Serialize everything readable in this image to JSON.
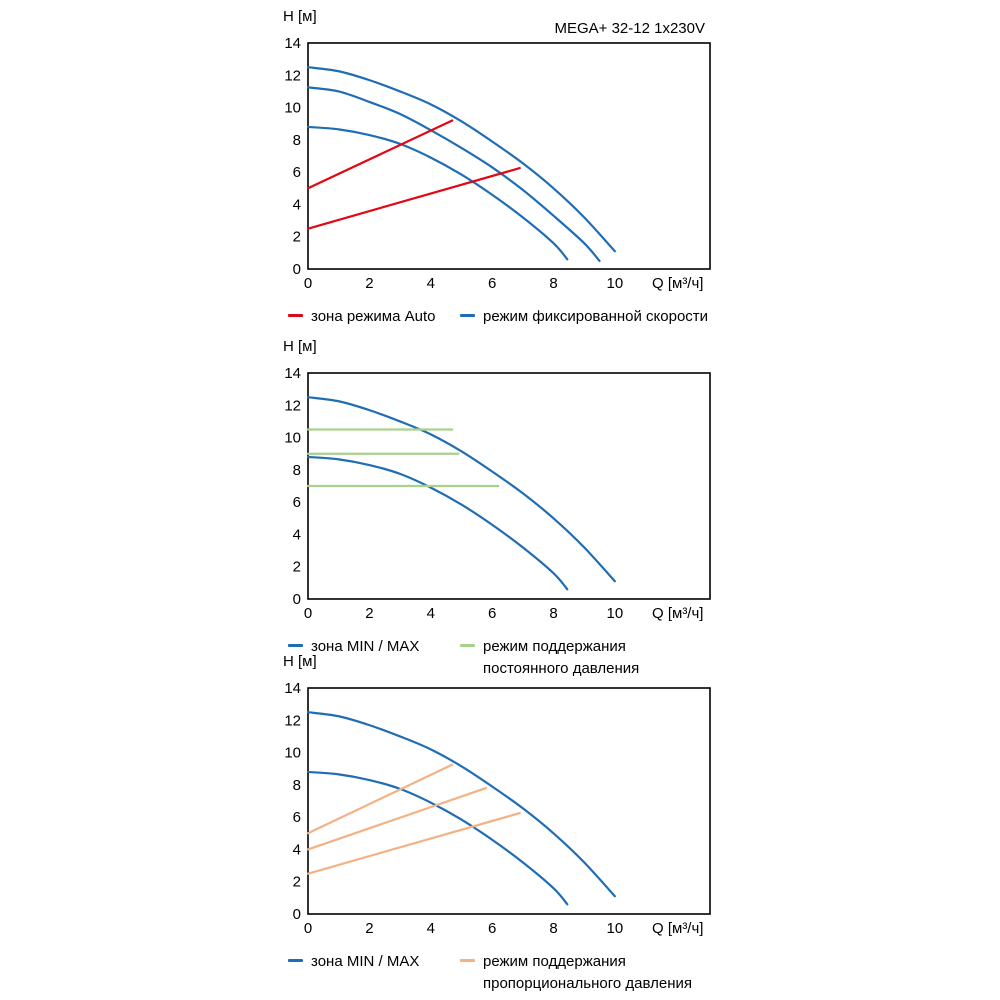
{
  "colors": {
    "blue": "#1f6db4",
    "red": "#e30613",
    "green": "#a9d18e",
    "orange": "#f4b183",
    "axis": "#000000",
    "background": "#ffffff"
  },
  "chart_data": [
    {
      "type": "line",
      "title": "MEGA+ 32-12 1x230V",
      "ylabel": "H [м]",
      "xlabel": "Q [м³/ч]",
      "xlim": [
        0,
        13.1
      ],
      "ylim": [
        0,
        14
      ],
      "xticks": [
        0,
        2,
        4,
        6,
        8,
        10
      ],
      "yticks": [
        0,
        2,
        4,
        6,
        8,
        10,
        12,
        14
      ],
      "grid": false,
      "legend_position": "bottom",
      "series": [
        {
          "name": "режим фиксированной скорости",
          "color": "blue",
          "shape": "curve",
          "points": [
            [
              0,
              12.5
            ],
            [
              1,
              12.25
            ],
            [
              2,
              11.7
            ],
            [
              3,
              11.0
            ],
            [
              4,
              10.2
            ],
            [
              5,
              9.15
            ],
            [
              6,
              7.9
            ],
            [
              7,
              6.55
            ],
            [
              8,
              5.0
            ],
            [
              9,
              3.2
            ],
            [
              10,
              1.1
            ]
          ]
        },
        {
          "name": "режим фиксированной скорости",
          "color": "blue",
          "shape": "curve",
          "points": [
            [
              0,
              11.25
            ],
            [
              1,
              11.0
            ],
            [
              2,
              10.35
            ],
            [
              3,
              9.6
            ],
            [
              4,
              8.6
            ],
            [
              5,
              7.5
            ],
            [
              6,
              6.3
            ],
            [
              7,
              4.9
            ],
            [
              8,
              3.3
            ],
            [
              9,
              1.6
            ],
            [
              9.5,
              0.5
            ]
          ]
        },
        {
          "name": "режим фиксированной скорости",
          "color": "blue",
          "shape": "curve",
          "points": [
            [
              0,
              8.8
            ],
            [
              1,
              8.65
            ],
            [
              2,
              8.3
            ],
            [
              3,
              7.75
            ],
            [
              4,
              6.9
            ],
            [
              5,
              5.85
            ],
            [
              6,
              4.6
            ],
            [
              7,
              3.2
            ],
            [
              8,
              1.6
            ],
            [
              8.45,
              0.6
            ]
          ]
        },
        {
          "name": "зона режима Auto",
          "color": "red",
          "shape": "line",
          "points": [
            [
              0,
              5.0
            ],
            [
              4.7,
              9.2
            ]
          ]
        },
        {
          "name": "зона режима Auto",
          "color": "red",
          "shape": "line",
          "points": [
            [
              0,
              2.5
            ],
            [
              6.9,
              6.25
            ]
          ]
        }
      ],
      "legend": [
        {
          "label": "зона режима Auto",
          "color": "red"
        },
        {
          "label": "режим фиксированной скорости",
          "color": "blue"
        }
      ]
    },
    {
      "type": "line",
      "title": "",
      "ylabel": "H [м]",
      "xlabel": "Q [м³/ч]",
      "xlim": [
        0,
        13.1
      ],
      "ylim": [
        0,
        14
      ],
      "xticks": [
        0,
        2,
        4,
        6,
        8,
        10
      ],
      "yticks": [
        0,
        2,
        4,
        6,
        8,
        10,
        12,
        14
      ],
      "grid": false,
      "legend_position": "bottom",
      "series": [
        {
          "name": "зона MIN / MAX",
          "color": "blue",
          "shape": "curve",
          "points": [
            [
              0,
              12.5
            ],
            [
              1,
              12.25
            ],
            [
              2,
              11.7
            ],
            [
              3,
              11.0
            ],
            [
              4,
              10.2
            ],
            [
              5,
              9.15
            ],
            [
              6,
              7.9
            ],
            [
              7,
              6.55
            ],
            [
              8,
              5.0
            ],
            [
              9,
              3.2
            ],
            [
              10,
              1.1
            ]
          ]
        },
        {
          "name": "зона MIN / MAX",
          "color": "blue",
          "shape": "curve",
          "points": [
            [
              0,
              8.8
            ],
            [
              1,
              8.65
            ],
            [
              2,
              8.3
            ],
            [
              3,
              7.75
            ],
            [
              4,
              6.9
            ],
            [
              5,
              5.85
            ],
            [
              6,
              4.6
            ],
            [
              7,
              3.2
            ],
            [
              8,
              1.6
            ],
            [
              8.45,
              0.6
            ]
          ]
        },
        {
          "name": "режим поддержания постоянного давления",
          "color": "green",
          "shape": "line",
          "points": [
            [
              0,
              10.5
            ],
            [
              4.7,
              10.5
            ]
          ]
        },
        {
          "name": "режим поддержания постоянного давления",
          "color": "green",
          "shape": "line",
          "points": [
            [
              0,
              9.0
            ],
            [
              4.9,
              9.0
            ]
          ]
        },
        {
          "name": "режим поддержания постоянного давления",
          "color": "green",
          "shape": "line",
          "points": [
            [
              0,
              7.0
            ],
            [
              6.2,
              7.0
            ]
          ]
        }
      ],
      "legend": [
        {
          "label": "зона MIN / MAX",
          "color": "blue"
        },
        {
          "label": "режим поддержания\nпостоянного давления",
          "color": "green"
        }
      ]
    },
    {
      "type": "line",
      "title": "",
      "ylabel": "H [м]",
      "xlabel": "Q [м³/ч]",
      "xlim": [
        0,
        13.1
      ],
      "ylim": [
        0,
        14
      ],
      "xticks": [
        0,
        2,
        4,
        6,
        8,
        10
      ],
      "yticks": [
        0,
        2,
        4,
        6,
        8,
        10,
        12,
        14
      ],
      "grid": false,
      "legend_position": "bottom",
      "series": [
        {
          "name": "зона MIN / MAX",
          "color": "blue",
          "shape": "curve",
          "points": [
            [
              0,
              12.5
            ],
            [
              1,
              12.25
            ],
            [
              2,
              11.7
            ],
            [
              3,
              11.0
            ],
            [
              4,
              10.2
            ],
            [
              5,
              9.15
            ],
            [
              6,
              7.9
            ],
            [
              7,
              6.55
            ],
            [
              8,
              5.0
            ],
            [
              9,
              3.2
            ],
            [
              10,
              1.1
            ]
          ]
        },
        {
          "name": "зона MIN / MAX",
          "color": "blue",
          "shape": "curve",
          "points": [
            [
              0,
              8.8
            ],
            [
              1,
              8.65
            ],
            [
              2,
              8.3
            ],
            [
              3,
              7.75
            ],
            [
              4,
              6.9
            ],
            [
              5,
              5.85
            ],
            [
              6,
              4.6
            ],
            [
              7,
              3.2
            ],
            [
              8,
              1.6
            ],
            [
              8.45,
              0.6
            ]
          ]
        },
        {
          "name": "режим поддержания пропорционального давления",
          "color": "orange",
          "shape": "line",
          "points": [
            [
              0,
              5.0
            ],
            [
              4.7,
              9.25
            ]
          ]
        },
        {
          "name": "режим поддержания пропорционального давления",
          "color": "orange",
          "shape": "line",
          "points": [
            [
              0,
              4.0
            ],
            [
              5.8,
              7.8
            ]
          ]
        },
        {
          "name": "режим поддержания пропорционального давления",
          "color": "orange",
          "shape": "line",
          "points": [
            [
              0,
              2.5
            ],
            [
              6.9,
              6.25
            ]
          ]
        }
      ],
      "legend": [
        {
          "label": "зона MIN / MAX",
          "color": "blue"
        },
        {
          "label": "режим поддержания\nпропорционального давления",
          "color": "orange"
        }
      ]
    }
  ]
}
